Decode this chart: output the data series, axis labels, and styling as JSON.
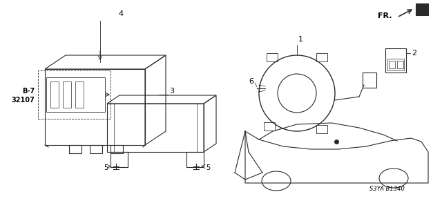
{
  "bg_color": "#ffffff",
  "line_color": "#2a2a2a",
  "text_color": "#000000",
  "diagram_code": "S3YA B1340",
  "ref_code": "B-7\n32107",
  "fr_label": "FR.",
  "figsize": [
    6.4,
    3.2
  ],
  "dpi": 100
}
